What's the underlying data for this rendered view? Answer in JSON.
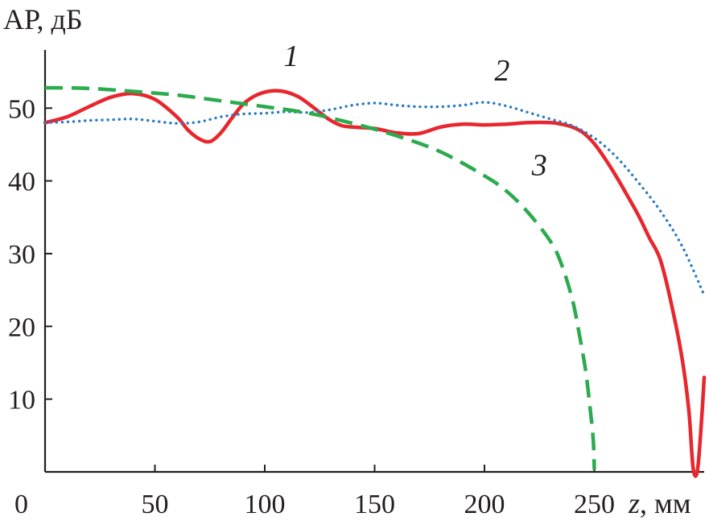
{
  "chart_data": {
    "type": "line",
    "ylabel": "АР, дБ",
    "xlabel_var": "z",
    "xlabel_unit": ", мм",
    "origin_label": "0",
    "xlim": [
      0,
      300
    ],
    "ylim": [
      0,
      58
    ],
    "xticks": [
      50,
      100,
      150,
      200,
      250
    ],
    "yticks": [
      10,
      20,
      30,
      40,
      50
    ],
    "grid": false,
    "series": [
      {
        "name": "1",
        "color": "#e8262d",
        "style": "solid",
        "x": [
          0,
          10,
          20,
          30,
          40,
          50,
          60,
          65,
          70,
          75,
          80,
          85,
          90,
          95,
          100,
          105,
          110,
          115,
          120,
          125,
          130,
          135,
          140,
          150,
          160,
          170,
          180,
          190,
          200,
          210,
          220,
          230,
          235,
          240,
          245,
          250,
          255,
          260,
          265,
          270,
          275,
          280,
          285,
          290,
          293,
          295,
          297,
          299,
          300
        ],
        "y": [
          48,
          48.8,
          50.2,
          51.5,
          52,
          51.2,
          48.8,
          47,
          45.8,
          45.4,
          46.6,
          48.6,
          50.5,
          51.6,
          52.2,
          52.4,
          52.2,
          51.6,
          50.6,
          49.4,
          48.3,
          47.6,
          47.4,
          47.2,
          46.6,
          46.5,
          47.4,
          47.8,
          47.7,
          47.8,
          48,
          48,
          47.8,
          47.4,
          46.6,
          45.1,
          43,
          40.6,
          38,
          35.3,
          32.2,
          29.2,
          23.2,
          15.5,
          8.5,
          0.5,
          0.3,
          8,
          13
        ]
      },
      {
        "name": "2",
        "color": "#2a7bc1",
        "style": "dotted",
        "x": [
          0,
          10,
          20,
          30,
          40,
          50,
          60,
          70,
          80,
          90,
          100,
          110,
          120,
          130,
          140,
          150,
          160,
          170,
          180,
          190,
          200,
          210,
          220,
          230,
          240,
          250,
          260,
          270,
          280,
          290,
          300
        ],
        "y": [
          48,
          48.1,
          48.3,
          48.4,
          48.5,
          48.2,
          47.9,
          48.1,
          48.8,
          49.2,
          49.3,
          49.5,
          49.4,
          49.8,
          50.4,
          50.7,
          50.4,
          50.2,
          50.2,
          50.4,
          50.8,
          50.3,
          49.4,
          48.5,
          47.6,
          45.9,
          43.3,
          39.8,
          35.9,
          31,
          24.3
        ]
      },
      {
        "name": "3",
        "color": "#2bab4e",
        "style": "dashed",
        "x": [
          0,
          20,
          40,
          60,
          80,
          100,
          120,
          140,
          160,
          180,
          200,
          210,
          220,
          230,
          235,
          240,
          243,
          246,
          248,
          249.5,
          250
        ],
        "y": [
          52.8,
          52.7,
          52.3,
          51.8,
          51,
          50.2,
          49.3,
          47.9,
          46.2,
          44,
          40.7,
          38.6,
          35.6,
          31.7,
          28.6,
          23.7,
          19.2,
          14,
          9,
          4.5,
          0.3
        ]
      }
    ],
    "annotations": [
      {
        "text": "1",
        "x": 112,
        "y": 55.8
      },
      {
        "text": "2",
        "x": 208,
        "y": 53.8
      },
      {
        "text": "3",
        "x": 225,
        "y": 40.8
      }
    ]
  }
}
